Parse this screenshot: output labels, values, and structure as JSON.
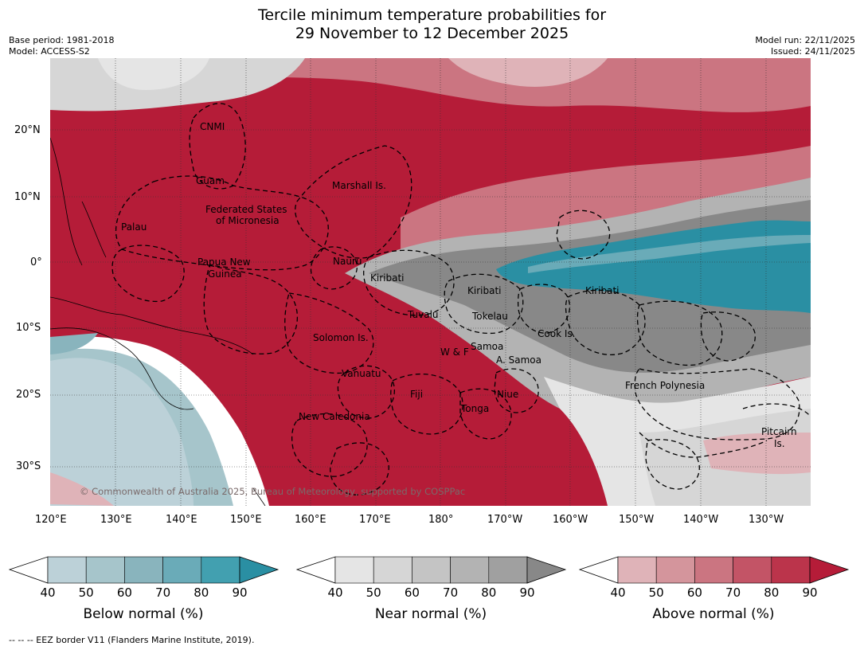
{
  "title_line1": "Tercile minimum temperature probabilities for",
  "title_line2": "29 November to 12 December 2025",
  "meta": {
    "base_period": "Base period: 1981-2018",
    "model": "Model: ACCESS-S2",
    "model_run": "Model run: 22/11/2025",
    "issued": "Issued: 24/11/2025"
  },
  "map": {
    "longitude_ticks": [
      "120°E",
      "130°E",
      "140°E",
      "150°E",
      "160°E",
      "170°E",
      "180°",
      "170°W",
      "160°W",
      "150°W",
      "140°W",
      "130°W"
    ],
    "latitude_ticks": [
      "20°N",
      "10°N",
      "0°",
      "10°S",
      "20°S",
      "30°S"
    ],
    "copyright": "© Commonwealth of Australia 2025, Bureau of Meteorology, supported by COSPPac",
    "places": [
      {
        "name": "cnmi",
        "label": "CNMI"
      },
      {
        "name": "guam",
        "label": "Guam"
      },
      {
        "name": "marshall",
        "label": "Marshall Is."
      },
      {
        "name": "fsm1",
        "label": "Federated States"
      },
      {
        "name": "fsm2",
        "label": "of Micronesia"
      },
      {
        "name": "palau",
        "label": "Palau"
      },
      {
        "name": "png1",
        "label": "Papua New"
      },
      {
        "name": "png2",
        "label": "Guinea"
      },
      {
        "name": "nauru",
        "label": "Nauru"
      },
      {
        "name": "kiribati-w",
        "label": "Kiribati"
      },
      {
        "name": "kiribati-c",
        "label": "Kiribati"
      },
      {
        "name": "kiribati-e",
        "label": "Kiribati"
      },
      {
        "name": "tuvalu",
        "label": "Tuvalu"
      },
      {
        "name": "tokelau",
        "label": "Tokelau"
      },
      {
        "name": "cook",
        "label": "Cook Is."
      },
      {
        "name": "solomon",
        "label": "Solomon Is."
      },
      {
        "name": "wf",
        "label": "W & F"
      },
      {
        "name": "samoa",
        "label": "Samoa"
      },
      {
        "name": "asamoa",
        "label": "A. Samoa"
      },
      {
        "name": "vanuatu",
        "label": "Vanuatu"
      },
      {
        "name": "fiji",
        "label": "Fiji"
      },
      {
        "name": "niue",
        "label": "Niue"
      },
      {
        "name": "tonga",
        "label": "Tonga"
      },
      {
        "name": "newcal",
        "label": "New Caledonia"
      },
      {
        "name": "frpoly",
        "label": "French Polynesia"
      },
      {
        "name": "pitcairn1",
        "label": "Pitcairn"
      },
      {
        "name": "pitcairn2",
        "label": "Is."
      }
    ]
  },
  "colorbars": [
    {
      "label": "Below normal (%)",
      "ticks": [
        "40",
        "50",
        "60",
        "70",
        "80",
        "90"
      ],
      "colors": [
        "#bcd1d8",
        "#a6c5cb",
        "#89b4bd",
        "#6aabb8",
        "#42a0b0",
        "#2a8fa3"
      ]
    },
    {
      "label": "Near normal (%)",
      "ticks": [
        "40",
        "50",
        "60",
        "70",
        "80",
        "90"
      ],
      "colors": [
        "#e5e5e5",
        "#d6d6d6",
        "#c4c4c4",
        "#b3b3b3",
        "#a0a0a0",
        "#888888"
      ]
    },
    {
      "label": "Above normal (%)",
      "ticks": [
        "40",
        "50",
        "60",
        "70",
        "80",
        "90"
      ],
      "colors": [
        "#dfb3b8",
        "#d4959c",
        "#cb7581",
        "#c35466",
        "#bb344b",
        "#b51c38"
      ]
    }
  ],
  "footnote": "--  --  -- EEZ border V11 (Flanders Marine Institute, 2019)."
}
